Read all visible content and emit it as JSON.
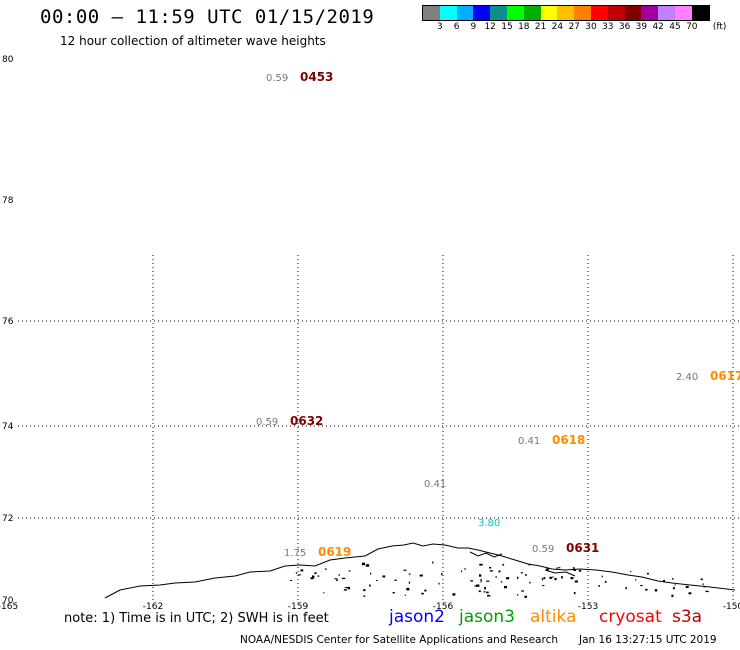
{
  "header": {
    "title": "00:00 – 11:59 UTC 01/15/2019",
    "subtitle": "12 hour collection of altimeter wave heights"
  },
  "colorbar": {
    "swatches": [
      "#808080",
      "#00ffff",
      "#00b0ff",
      "#0000ff",
      "#0b8f8f",
      "#00ff00",
      "#00b000",
      "#ffff00",
      "#ffc000",
      "#ff8000",
      "#ff0000",
      "#c00000",
      "#800000",
      "#a000a0",
      "#c080ff",
      "#ff80ff",
      "#000000"
    ],
    "labels": [
      "3",
      "6",
      "9",
      "12",
      "15",
      "18",
      "21",
      "24",
      "27",
      "30",
      "33",
      "36",
      "39",
      "42",
      "45",
      "70"
    ],
    "unit": "(ft)"
  },
  "axes": {
    "lat_labels": [
      "80",
      "78",
      "76",
      "74",
      "72",
      "70"
    ],
    "lon_labels": [
      "-165",
      "-162",
      "-159",
      "-156",
      "-153",
      "-150"
    ]
  },
  "observations": [
    {
      "swh": "0.59",
      "time": "0453",
      "time_color": "#800000"
    },
    {
      "swh": "2.40",
      "time": "0617",
      "time_color": "#ff8c00"
    },
    {
      "swh": "0.59",
      "time": "0632",
      "time_color": "#800000"
    },
    {
      "swh": "0.41",
      "time": "0618",
      "time_color": "#ff8c00"
    },
    {
      "swh": "0.41",
      "time": "",
      "time_color": ""
    },
    {
      "swh": "3.80",
      "time": "",
      "time_color": "#00c8c8"
    },
    {
      "swh": "1.75",
      "time": "0619",
      "time_color": "#ff8c00"
    },
    {
      "swh": "0.59",
      "time": "0631",
      "time_color": "#800000"
    }
  ],
  "footer": {
    "note": "note: 1) Time is in UTC; 2) SWH is in feet",
    "legend": [
      {
        "name": "jason2",
        "color": "#0000ff"
      },
      {
        "name": "jason3",
        "color": "#00a000"
      },
      {
        "name": "altika",
        "color": "#ff8c00"
      },
      {
        "name": "cryosat",
        "color": "#ff0000"
      },
      {
        "name": "s3a",
        "color": "#c00000"
      }
    ],
    "credit": "NOAA/NESDIS Center for Satellite Applications and Research",
    "timestamp": "Jan 16 13:27:15 UTC 2019"
  }
}
